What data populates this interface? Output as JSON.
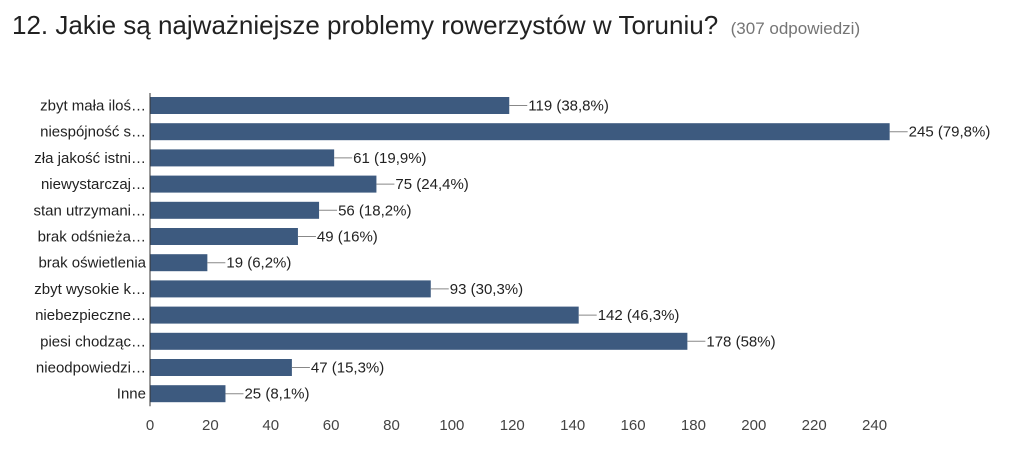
{
  "header": {
    "title": "12. Jakie są najważniejsze problemy rowerzystów w Toruniu?",
    "response_count": "(307 odpowiedzi)"
  },
  "chart_data": {
    "type": "bar",
    "orientation": "horizontal",
    "categories": [
      "zbyt mała iloś…",
      "niespójność s…",
      "zła jakość istni…",
      "niewystarczaj…",
      "stan utrzymani…",
      "brak odśnieża…",
      "brak oświetlenia",
      "zbyt wysokie k…",
      "niebezpieczne…",
      "piesi chodząc…",
      "nieodpowiedzi…",
      "Inne"
    ],
    "values": [
      119,
      245,
      61,
      75,
      56,
      49,
      19,
      93,
      142,
      178,
      47,
      25
    ],
    "data_labels": [
      "119 (38,8%)",
      "245 (79,8%)",
      "61 (19,9%)",
      "75 (24,4%)",
      "56 (18,2%)",
      "49 (16%)",
      "19 (6,2%)",
      "93 (30,3%)",
      "142 (46,3%)",
      "178 (58%)",
      "47 (15,3%)",
      "25 (8,1%)"
    ],
    "xticks": [
      0,
      20,
      40,
      60,
      80,
      100,
      120,
      140,
      160,
      180,
      200,
      220,
      240
    ],
    "xlim": [
      0,
      245
    ],
    "grid": false,
    "bar_color": "#3d5a7f"
  }
}
